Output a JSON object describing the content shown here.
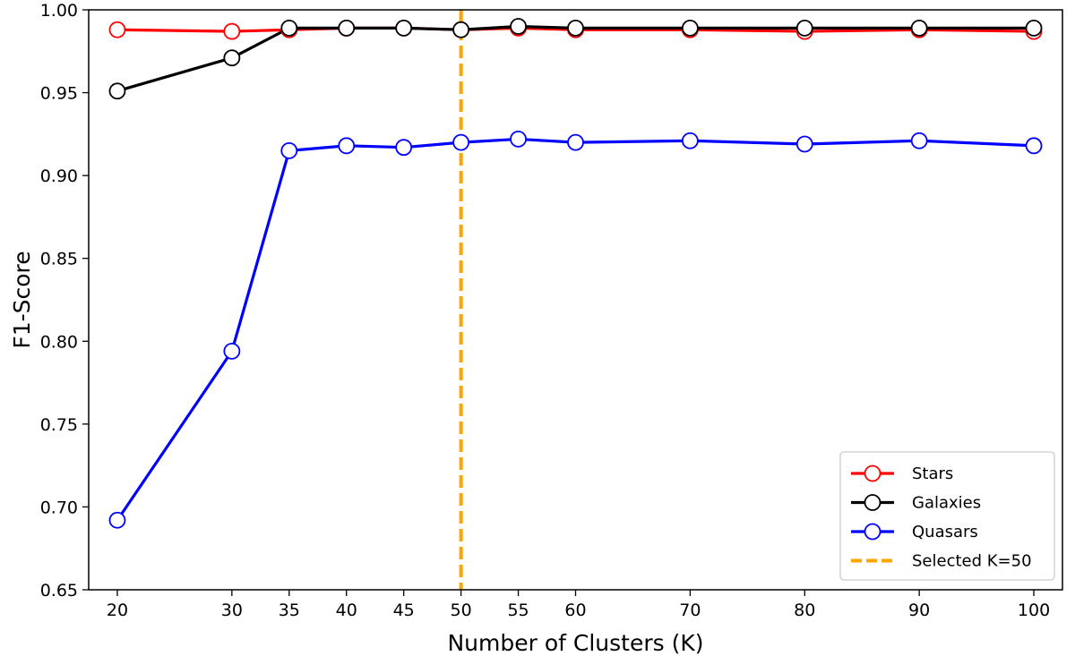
{
  "chart_data": {
    "type": "line",
    "title": "",
    "xlabel": "Number of Clusters (K)",
    "ylabel": "F1-Score",
    "x": [
      20,
      30,
      35,
      40,
      45,
      50,
      55,
      60,
      70,
      80,
      90,
      100
    ],
    "x_tick_labels": [
      "20",
      "30",
      "35",
      "40",
      "45",
      "50",
      "55",
      "60",
      "70",
      "80",
      "90",
      "100"
    ],
    "xlim": [
      17.5,
      102.5
    ],
    "ylim": [
      0.65,
      1.0
    ],
    "y_ticks": [
      0.65,
      0.7,
      0.75,
      0.8,
      0.85,
      0.9,
      0.95,
      1.0
    ],
    "y_tick_labels": [
      "0.65",
      "0.70",
      "0.75",
      "0.80",
      "0.85",
      "0.90",
      "0.95",
      "1.00"
    ],
    "grid": false,
    "legend_position": "bottom-right",
    "series": [
      {
        "name": "Stars",
        "color": "#ff0000",
        "marker": "open-circle",
        "values": [
          0.988,
          0.987,
          0.988,
          0.989,
          0.989,
          0.988,
          0.989,
          0.988,
          0.988,
          0.987,
          0.988,
          0.987
        ]
      },
      {
        "name": "Galaxies",
        "color": "#000000",
        "marker": "open-circle",
        "values": [
          0.951,
          0.971,
          0.989,
          0.989,
          0.989,
          0.988,
          0.99,
          0.989,
          0.989,
          0.989,
          0.989,
          0.989
        ]
      },
      {
        "name": "Quasars",
        "color": "#0000ff",
        "marker": "open-circle",
        "values": [
          0.692,
          0.794,
          0.915,
          0.918,
          0.917,
          0.92,
          0.922,
          0.92,
          0.921,
          0.919,
          0.921,
          0.918
        ]
      }
    ],
    "annotations": [
      {
        "type": "vline",
        "x": 50,
        "label": "Selected K=50",
        "color": "#ffa500",
        "style": "dashed"
      }
    ]
  }
}
